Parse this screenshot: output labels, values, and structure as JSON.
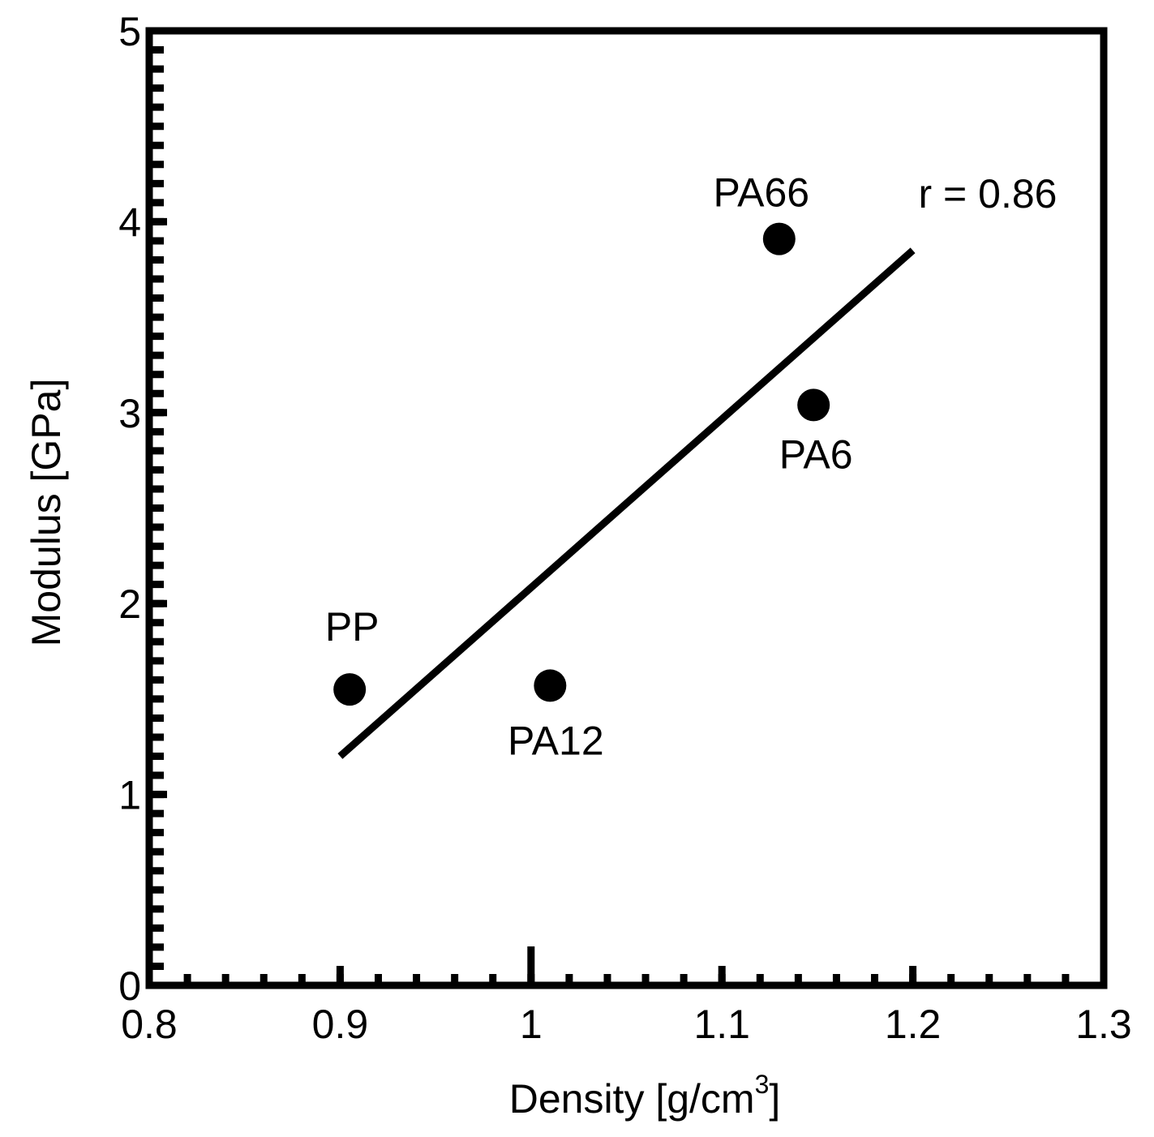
{
  "chart_data": {
    "type": "scatter",
    "title": "",
    "xlabel": "Density [g/cm",
    "xlabel_superscript": "3",
    "xlabel_suffix": "]",
    "ylabel": "Modulus [GPa]",
    "xlim": [
      0.8,
      1.3
    ],
    "ylim": [
      0,
      5
    ],
    "x_ticks": [
      "0.8",
      "0.9",
      "1",
      "1.1",
      "1.2",
      "1.3"
    ],
    "y_ticks": [
      "0",
      "1",
      "2",
      "3",
      "4",
      "5"
    ],
    "grid": false,
    "points": [
      {
        "label": "PP",
        "x": 0.905,
        "y": 1.55
      },
      {
        "label": "PA12",
        "x": 1.01,
        "y": 1.57
      },
      {
        "label": "PA66",
        "x": 1.13,
        "y": 3.91
      },
      {
        "label": "PA6",
        "x": 1.148,
        "y": 3.04
      }
    ],
    "fit_line": {
      "x": [
        0.9,
        1.2
      ],
      "y": [
        1.2,
        3.85
      ]
    },
    "annotation": "r = 0.86",
    "colors": {
      "marker": "#000000",
      "line": "#000000"
    }
  }
}
